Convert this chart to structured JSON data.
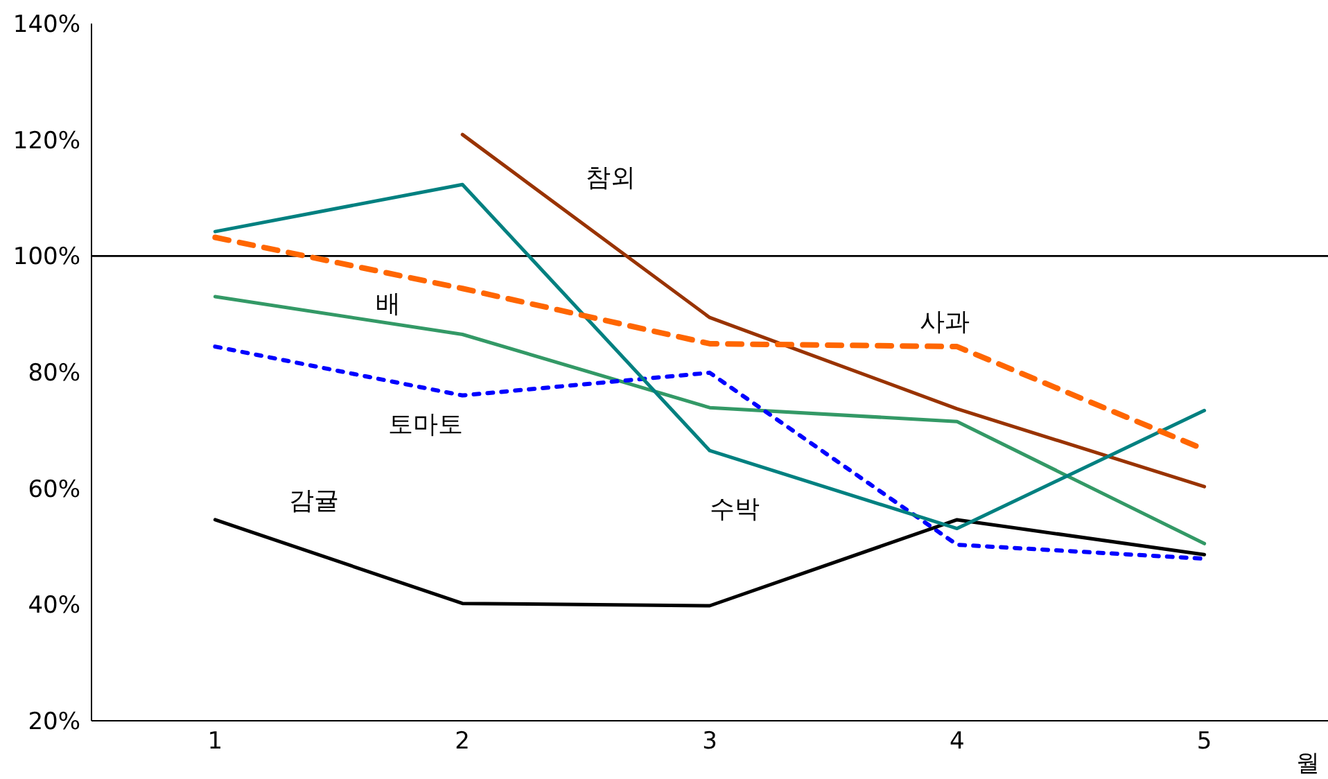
{
  "chart_data": {
    "type": "line",
    "xlabel": "월",
    "x": [
      1,
      2,
      3,
      4,
      5
    ],
    "xlim": [
      0.5,
      5.5
    ],
    "xticks": [
      1,
      2,
      3,
      4,
      5
    ],
    "ylim": [
      20,
      140
    ],
    "yticks": [
      {
        "value": 20,
        "label": "20%"
      },
      {
        "value": 40,
        "label": "40%"
      },
      {
        "value": 60,
        "label": "60%"
      },
      {
        "value": 80,
        "label": "80%"
      },
      {
        "value": 100,
        "label": "100%"
      },
      {
        "value": 120,
        "label": "120%"
      },
      {
        "value": 140,
        "label": "140%"
      }
    ],
    "grid": false,
    "legend": false,
    "marker": "none",
    "ref_lines": [
      {
        "axis": "y",
        "value": 100,
        "color": "#000000"
      }
    ],
    "series": [
      {
        "name": "참외",
        "color": "#993300",
        "line_style": "solid",
        "values": [
          null,
          120.9,
          89.4,
          73.7,
          60.3
        ]
      },
      {
        "name": "배",
        "color": "#339966",
        "line_style": "solid",
        "values": [
          93,
          86.5,
          73.9,
          71.5,
          50.5
        ]
      },
      {
        "name": "토마토",
        "color": "#0000ff",
        "line_style": "dotted",
        "values": [
          84.4,
          76,
          79.9,
          50.3,
          47.9
        ]
      },
      {
        "name": "감귤",
        "color": "#000000",
        "line_style": "solid",
        "values": [
          54.6,
          40.2,
          39.8,
          54.6,
          48.6
        ]
      },
      {
        "name": "수박",
        "color": "#008080",
        "line_style": "solid",
        "values": [
          104.2,
          112.3,
          66.5,
          53.1,
          73.4
        ]
      },
      {
        "name": "사과",
        "color": "#ff6600",
        "line_style": "dashed",
        "values": [
          103.2,
          94.4,
          84.9,
          84.4,
          66.7
        ]
      }
    ]
  }
}
